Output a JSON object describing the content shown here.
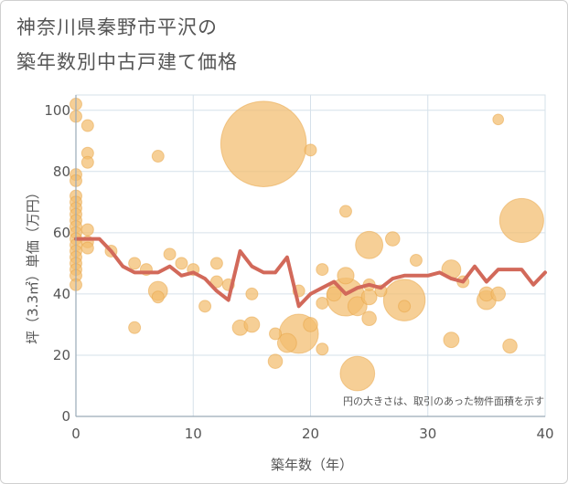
{
  "title_line1": "神奈川県秦野市平沢の",
  "title_line2": "築年数別中古戸建て価格",
  "chart_data": {
    "type": "scatter",
    "title": "神奈川県秦野市平沢の築年数別中古戸建て価格",
    "xlabel": "築年数（年）",
    "ylabel": "坪（3.3㎡）単価（万円）",
    "xlim": [
      0,
      40
    ],
    "ylim": [
      0,
      105
    ],
    "xticks": [
      0,
      10,
      20,
      30,
      40
    ],
    "yticks": [
      0,
      20,
      40,
      60,
      80,
      100
    ],
    "note": "円の大きさは、取引のあった物件面積を示す",
    "colors": {
      "bubble": "#f2bd6e",
      "line": "#d2695a",
      "grid": "#d6e1ea",
      "axis": "#9aaab8"
    },
    "points": [
      {
        "x": 0,
        "y": 102,
        "s": 1
      },
      {
        "x": 0,
        "y": 98,
        "s": 1
      },
      {
        "x": 0,
        "y": 79,
        "s": 1
      },
      {
        "x": 0,
        "y": 77,
        "s": 1
      },
      {
        "x": 0,
        "y": 72,
        "s": 1
      },
      {
        "x": 0,
        "y": 70,
        "s": 1
      },
      {
        "x": 0,
        "y": 68,
        "s": 1
      },
      {
        "x": 0,
        "y": 66,
        "s": 1
      },
      {
        "x": 0,
        "y": 64,
        "s": 1
      },
      {
        "x": 0,
        "y": 62,
        "s": 1
      },
      {
        "x": 0,
        "y": 60,
        "s": 1
      },
      {
        "x": 0,
        "y": 58,
        "s": 1
      },
      {
        "x": 0,
        "y": 56,
        "s": 1
      },
      {
        "x": 0,
        "y": 54,
        "s": 1
      },
      {
        "x": 0,
        "y": 52,
        "s": 1
      },
      {
        "x": 0,
        "y": 50,
        "s": 1
      },
      {
        "x": 0,
        "y": 48,
        "s": 1
      },
      {
        "x": 0,
        "y": 46,
        "s": 1
      },
      {
        "x": 0,
        "y": 43,
        "s": 1
      },
      {
        "x": 1,
        "y": 95,
        "s": 1
      },
      {
        "x": 1,
        "y": 86,
        "s": 1
      },
      {
        "x": 1,
        "y": 83,
        "s": 1
      },
      {
        "x": 1,
        "y": 61,
        "s": 1
      },
      {
        "x": 1,
        "y": 57,
        "s": 1
      },
      {
        "x": 1,
        "y": 55,
        "s": 1
      },
      {
        "x": 3,
        "y": 54,
        "s": 1
      },
      {
        "x": 5,
        "y": 50,
        "s": 1
      },
      {
        "x": 5,
        "y": 29,
        "s": 1
      },
      {
        "x": 6,
        "y": 48,
        "s": 1
      },
      {
        "x": 7,
        "y": 85,
        "s": 1
      },
      {
        "x": 7,
        "y": 41,
        "s": 1.6
      },
      {
        "x": 7,
        "y": 39,
        "s": 1
      },
      {
        "x": 8,
        "y": 53,
        "s": 1
      },
      {
        "x": 9,
        "y": 50,
        "s": 1
      },
      {
        "x": 10,
        "y": 48,
        "s": 1
      },
      {
        "x": 11,
        "y": 36,
        "s": 1
      },
      {
        "x": 12,
        "y": 50,
        "s": 1
      },
      {
        "x": 12,
        "y": 44,
        "s": 1
      },
      {
        "x": 13,
        "y": 43,
        "s": 1
      },
      {
        "x": 14,
        "y": 29,
        "s": 1.3
      },
      {
        "x": 15,
        "y": 40,
        "s": 1
      },
      {
        "x": 15,
        "y": 30,
        "s": 1.3
      },
      {
        "x": 16,
        "y": 89,
        "s": 7.2
      },
      {
        "x": 17,
        "y": 27,
        "s": 1
      },
      {
        "x": 17,
        "y": 18,
        "s": 1.2
      },
      {
        "x": 18,
        "y": 24,
        "s": 1.6
      },
      {
        "x": 19,
        "y": 27,
        "s": 3.3
      },
      {
        "x": 19,
        "y": 41,
        "s": 1
      },
      {
        "x": 20,
        "y": 87,
        "s": 1
      },
      {
        "x": 20,
        "y": 30,
        "s": 1.2
      },
      {
        "x": 21,
        "y": 48,
        "s": 1
      },
      {
        "x": 21,
        "y": 37,
        "s": 1
      },
      {
        "x": 21,
        "y": 22,
        "s": 1
      },
      {
        "x": 22,
        "y": 40,
        "s": 1.2
      },
      {
        "x": 23,
        "y": 67,
        "s": 1
      },
      {
        "x": 23,
        "y": 46,
        "s": 1.4
      },
      {
        "x": 23,
        "y": 39,
        "s": 3.2
      },
      {
        "x": 24,
        "y": 36,
        "s": 1.6
      },
      {
        "x": 24,
        "y": 14,
        "s": 2.9
      },
      {
        "x": 25,
        "y": 56,
        "s": 2.3
      },
      {
        "x": 25,
        "y": 43,
        "s": 1
      },
      {
        "x": 25,
        "y": 39,
        "s": 1.3
      },
      {
        "x": 25,
        "y": 32,
        "s": 1.2
      },
      {
        "x": 26,
        "y": 41,
        "s": 1
      },
      {
        "x": 27,
        "y": 58,
        "s": 1.2
      },
      {
        "x": 28,
        "y": 38,
        "s": 3.5
      },
      {
        "x": 28,
        "y": 36,
        "s": 1
      },
      {
        "x": 29,
        "y": 51,
        "s": 1
      },
      {
        "x": 32,
        "y": 48,
        "s": 1.6
      },
      {
        "x": 32,
        "y": 25,
        "s": 1.3
      },
      {
        "x": 33,
        "y": 44,
        "s": 1
      },
      {
        "x": 35,
        "y": 40,
        "s": 1.2
      },
      {
        "x": 35,
        "y": 38,
        "s": 1.6
      },
      {
        "x": 36,
        "y": 97,
        "s": 0.9
      },
      {
        "x": 36,
        "y": 40,
        "s": 1.2
      },
      {
        "x": 37,
        "y": 23,
        "s": 1.2
      },
      {
        "x": 38,
        "y": 64,
        "s": 3.7
      }
    ],
    "trend": {
      "x": [
        0,
        1,
        2,
        3,
        4,
        5,
        6,
        7,
        8,
        9,
        10,
        11,
        12,
        13,
        14,
        15,
        16,
        17,
        18,
        19,
        20,
        21,
        22,
        23,
        24,
        25,
        26,
        27,
        28,
        29,
        30,
        31,
        32,
        33,
        34,
        35,
        36,
        37,
        38,
        39,
        40
      ],
      "y": [
        58,
        58,
        58,
        54,
        49,
        47,
        47,
        47,
        49,
        46,
        47,
        45,
        41,
        38,
        54,
        49,
        47,
        47,
        52,
        36,
        40,
        42,
        44,
        40,
        42,
        43,
        42,
        45,
        46,
        46,
        46,
        47,
        45,
        44,
        49,
        44,
        48,
        48,
        48,
        43,
        47
      ]
    }
  }
}
